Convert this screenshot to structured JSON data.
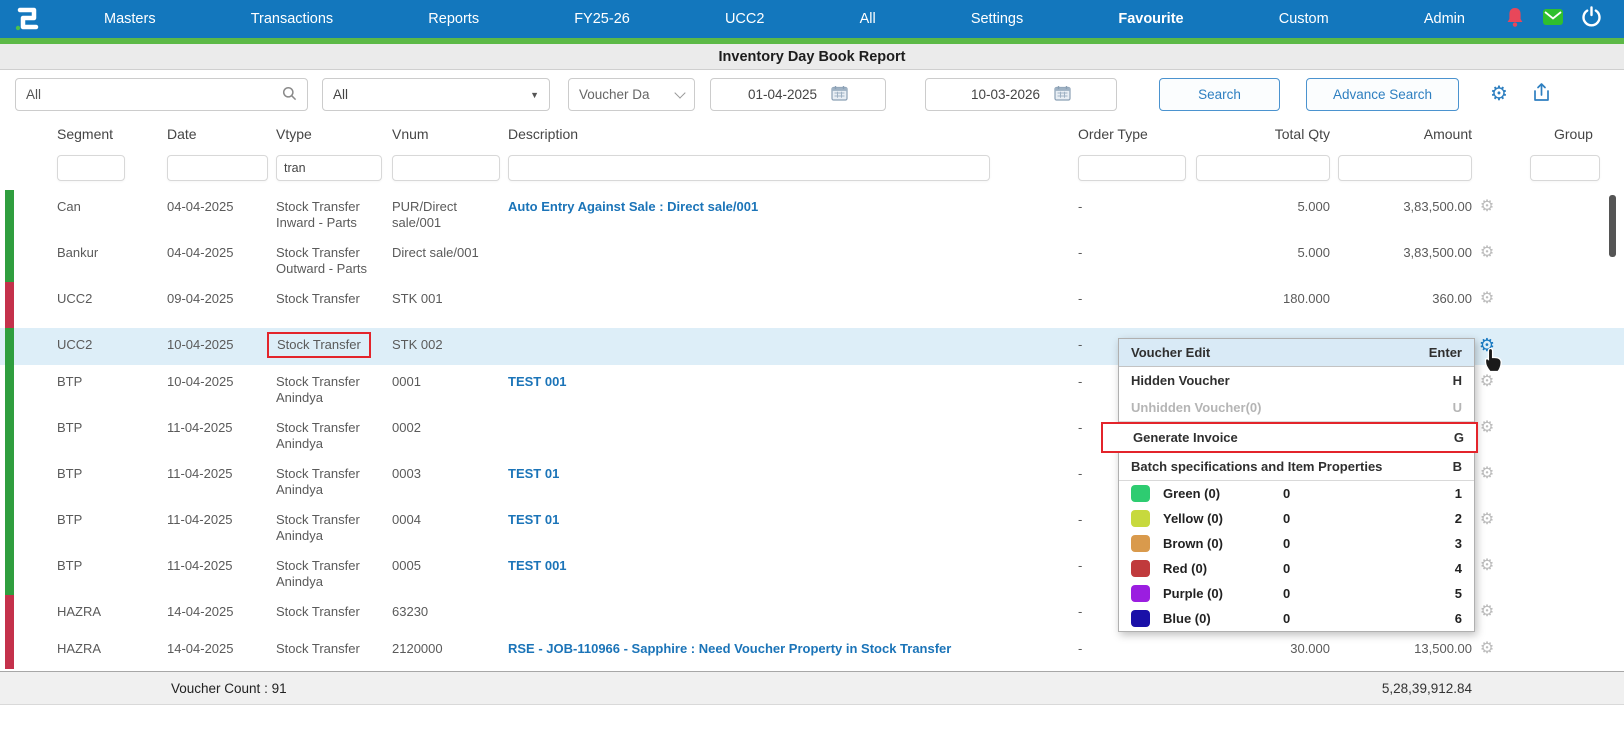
{
  "nav": {
    "items": [
      {
        "label": "Masters"
      },
      {
        "label": "Transactions"
      },
      {
        "label": "Reports"
      },
      {
        "label": "FY25-26"
      },
      {
        "label": "UCC2"
      },
      {
        "label": "All"
      },
      {
        "label": "Settings"
      },
      {
        "label": "Favourite",
        "active": true
      },
      {
        "label": "Custom"
      },
      {
        "label": "Admin"
      }
    ],
    "icons": [
      {
        "name": "notification-bell-icon",
        "color": "#e8475a"
      },
      {
        "name": "mail-icon",
        "color": "#2fbf2f"
      },
      {
        "name": "power-icon",
        "color": "#ffffff"
      }
    ]
  },
  "page_title": "Inventory Day Book Report",
  "filter_bar": {
    "quick_search_value": "All",
    "type_select_value": "All",
    "date_field_select_value": "Voucher Da",
    "from_date": "01-04-2025",
    "to_date": "10-03-2026",
    "search_label": "Search",
    "advance_search_label": "Advance Search",
    "icons": [
      "search-icon",
      "dropdown-caret-icon",
      "calendar-icon",
      "settings-gear-icon",
      "export-icon"
    ]
  },
  "table": {
    "columns": [
      "Segment",
      "Date",
      "Vtype",
      "Vnum",
      "Description",
      "Order Type",
      "Total Qty",
      "Amount",
      "Group"
    ],
    "column_filters": {
      "segment": "",
      "date": "",
      "vtype": "tran",
      "vnum": "",
      "description": "",
      "order_type": "",
      "total_qty": "",
      "amount": "",
      "group": ""
    },
    "rows": [
      {
        "bar": "green",
        "segment": "Can",
        "date": "04-04-2025",
        "vtype": "Stock Transfer Inward - Parts",
        "vnum": "PUR/Direct sale/001",
        "description": "Auto Entry Against Sale : Direct sale/001",
        "order_type": "-",
        "total_qty": "5.000",
        "amount": "3,83,500.00"
      },
      {
        "bar": "green",
        "segment": "Bankur",
        "date": "04-04-2025",
        "vtype": "Stock Transfer Outward - Parts",
        "vnum": "Direct sale/001",
        "description": "",
        "order_type": "-",
        "total_qty": "5.000",
        "amount": "3,83,500.00"
      },
      {
        "bar": "red",
        "segment": "UCC2",
        "date": "09-04-2025",
        "vtype": "Stock Transfer",
        "vnum": "STK 001",
        "description": "",
        "order_type": "-",
        "total_qty": "180.000",
        "amount": "360.00"
      },
      {
        "bar": "green",
        "segment": "UCC2",
        "date": "10-04-2025",
        "vtype": "Stock Transfer",
        "vnum": "STK 002",
        "description": "",
        "order_type": "-",
        "total_qty": "",
        "amount": "",
        "highlighted": true,
        "vtype_boxed": true,
        "gear_active": true
      },
      {
        "bar": "green",
        "segment": "BTP",
        "date": "10-04-2025",
        "vtype": "Stock Transfer Anindya",
        "vnum": "0001",
        "description": "TEST 001",
        "order_type": "-",
        "total_qty": "",
        "amount": ""
      },
      {
        "bar": "green",
        "segment": "BTP",
        "date": "11-04-2025",
        "vtype": "Stock Transfer Anindya",
        "vnum": "0002",
        "description": "",
        "order_type": "-",
        "total_qty": "",
        "amount": ""
      },
      {
        "bar": "green",
        "segment": "BTP",
        "date": "11-04-2025",
        "vtype": "Stock Transfer Anindya",
        "vnum": "0003",
        "description": "TEST 01",
        "order_type": "-",
        "total_qty": "",
        "amount": ""
      },
      {
        "bar": "green",
        "segment": "BTP",
        "date": "11-04-2025",
        "vtype": "Stock Transfer Anindya",
        "vnum": "0004",
        "description": "TEST 01",
        "order_type": "-",
        "total_qty": "",
        "amount": ""
      },
      {
        "bar": "green",
        "segment": "BTP",
        "date": "11-04-2025",
        "vtype": "Stock Transfer Anindya",
        "vnum": "0005",
        "description": "TEST 001",
        "order_type": "-",
        "total_qty": "",
        "amount": ""
      },
      {
        "bar": "red",
        "segment": "HAZRA",
        "date": "14-04-2025",
        "vtype": "Stock Transfer",
        "vnum": "63230",
        "description": "",
        "order_type": "-",
        "total_qty": "",
        "amount": ""
      },
      {
        "bar": "red",
        "segment": "HAZRA",
        "date": "14-04-2025",
        "vtype": "Stock Transfer",
        "vnum": "2120000",
        "description": "RSE - JOB-110966 - Sapphire : Need Voucher Property in Stock Transfer",
        "order_type": "-",
        "total_qty": "30.000",
        "amount": "13,500.00"
      }
    ]
  },
  "context_menu": {
    "actions": [
      {
        "label": "Voucher Edit",
        "shortcut": "Enter",
        "header": true
      },
      {
        "label": "Hidden Voucher",
        "shortcut": "H"
      },
      {
        "label": "Unhidden Voucher(0)",
        "shortcut": "U",
        "disabled": true,
        "sep": true
      },
      {
        "label": "Generate Invoice",
        "shortcut": "G",
        "annotated": true
      },
      {
        "label": "Batch specifications and Item Properties",
        "shortcut": "B",
        "sep": true
      }
    ],
    "batch_colors": [
      {
        "label": "Green (0)",
        "qty": "0",
        "num": "1",
        "color": "#2ecc71"
      },
      {
        "label": "Yellow (0)",
        "qty": "0",
        "num": "2",
        "color": "#c7d93d"
      },
      {
        "label": "Brown (0)",
        "qty": "0",
        "num": "3",
        "color": "#d99a4c"
      },
      {
        "label": "Red (0)",
        "qty": "0",
        "num": "4",
        "color": "#c03a3c"
      },
      {
        "label": "Purple (0)",
        "qty": "0",
        "num": "5",
        "color": "#9b1ee0"
      },
      {
        "label": "Blue (0)",
        "qty": "0",
        "num": "6",
        "color": "#1a10a8"
      }
    ]
  },
  "footer": {
    "voucher_count": "Voucher Count : 91",
    "total_amount": "5,28,39,912.84"
  },
  "colors": {
    "nav_bar": "#1377bd",
    "green_strip": "#5cb947",
    "accent": "#2e7fc0",
    "link": "#1b74b8",
    "bar_green": "#2f9e3e",
    "bar_red": "#c4314b",
    "row_highlight": "#ddeef8",
    "annotation_red": "#e3242b"
  }
}
